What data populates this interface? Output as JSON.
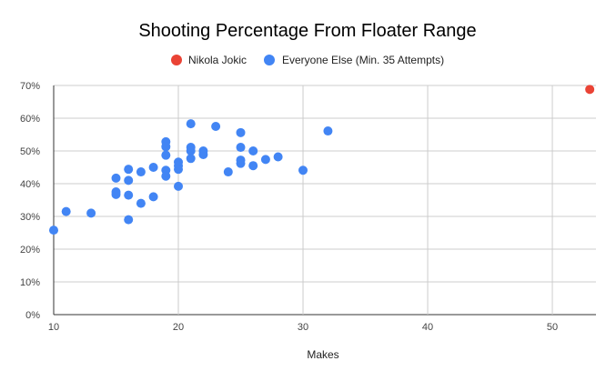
{
  "chart_data": {
    "type": "scatter",
    "title": "Shooting Percentage From Floater Range",
    "xlabel": "Makes",
    "ylabel": "",
    "xlim": [
      10,
      53.5
    ],
    "ylim": [
      0,
      70
    ],
    "xticks": [
      10,
      20,
      30,
      40,
      50
    ],
    "yticks": [
      "0%",
      "10%",
      "20%",
      "30%",
      "40%",
      "50%",
      "60%",
      "70%"
    ],
    "grid": true,
    "legend_position": "top",
    "series": [
      {
        "name": "Nikola Jokic",
        "color": "#ea4335",
        "points": [
          [
            53,
            68.8
          ]
        ]
      },
      {
        "name": "Everyone Else (Min. 35 Attempts)",
        "color": "#4285f4",
        "points": [
          [
            10,
            25.8
          ],
          [
            11,
            31.5
          ],
          [
            13,
            31
          ],
          [
            15,
            41.7
          ],
          [
            15,
            37.5
          ],
          [
            15,
            36.7
          ],
          [
            16,
            44.4
          ],
          [
            16,
            41
          ],
          [
            16,
            36.5
          ],
          [
            16,
            29
          ],
          [
            17,
            43.6
          ],
          [
            17,
            34
          ],
          [
            18,
            45
          ],
          [
            18,
            36
          ],
          [
            19,
            52.8
          ],
          [
            19,
            51.3
          ],
          [
            19,
            48.7
          ],
          [
            19,
            44.1
          ],
          [
            19,
            42.3
          ],
          [
            20,
            46.6
          ],
          [
            20,
            45.5
          ],
          [
            20,
            44.4
          ],
          [
            20,
            39.2
          ],
          [
            21,
            58.3
          ],
          [
            21,
            51.1
          ],
          [
            21,
            50
          ],
          [
            21,
            47.7
          ],
          [
            22,
            50
          ],
          [
            22,
            48.9
          ],
          [
            23,
            57.5
          ],
          [
            24,
            43.6
          ],
          [
            25,
            55.6
          ],
          [
            25,
            51.1
          ],
          [
            25,
            47.2
          ],
          [
            25,
            46.2
          ],
          [
            26,
            50
          ],
          [
            26,
            45.5
          ],
          [
            27,
            47.4
          ],
          [
            28,
            48.2
          ],
          [
            30,
            44.1
          ],
          [
            32,
            56.1
          ]
        ]
      }
    ]
  }
}
